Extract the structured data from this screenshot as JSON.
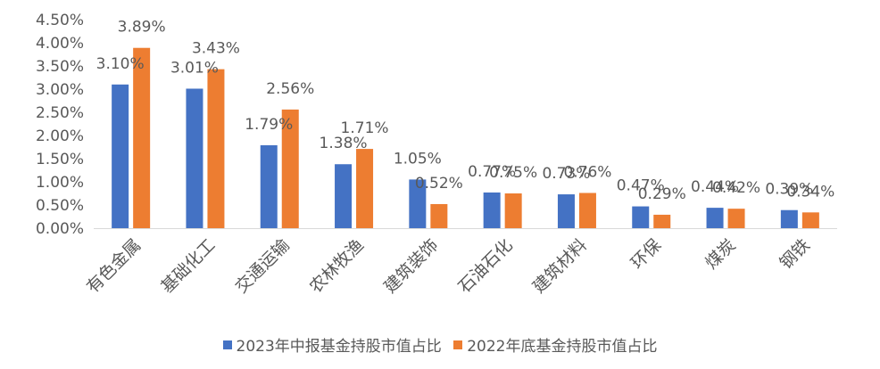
{
  "chart_data": {
    "type": "bar",
    "categories": [
      "有色金属",
      "基础化工",
      "交通运输",
      "农林牧渔",
      "建筑装饰",
      "石油石化",
      "建筑材料",
      "环保",
      "煤炭",
      "钢铁"
    ],
    "series": [
      {
        "name": "2023年中报基金持股市值占比",
        "color": "#4472C4",
        "values": [
          3.1,
          3.01,
          1.79,
          1.38,
          1.05,
          0.77,
          0.73,
          0.47,
          0.44,
          0.39
        ],
        "labels": [
          "3.10%",
          "3.01%",
          "1.79%",
          "1.38%",
          "1.05%",
          "0.77%",
          "0.73%",
          "0.47%",
          "0.44%",
          "0.39%"
        ]
      },
      {
        "name": "2022年底基金持股市值占比",
        "color": "#ED7D31",
        "values": [
          3.89,
          3.43,
          2.56,
          1.71,
          0.52,
          0.75,
          0.76,
          0.29,
          0.42,
          0.34
        ],
        "labels": [
          "3.89%",
          "3.43%",
          "2.56%",
          "1.71%",
          "0.52%",
          "0.75%",
          "0.76%",
          "0.29%",
          "0.42%",
          "0.34%"
        ]
      }
    ],
    "ylim": [
      0,
      4.5
    ],
    "yticks": [
      "0.00%",
      "0.50%",
      "1.00%",
      "1.50%",
      "2.00%",
      "2.50%",
      "3.00%",
      "3.50%",
      "4.00%",
      "4.50%"
    ],
    "grid": false,
    "legend_position": "bottom"
  }
}
